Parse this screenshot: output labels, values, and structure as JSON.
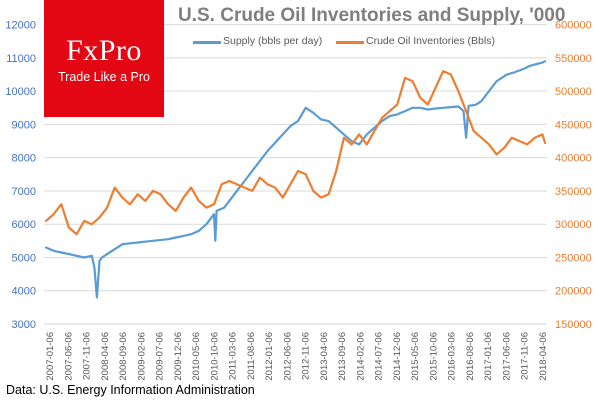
{
  "logo": {
    "name": "FxPro",
    "tagline": "Trade Like a Pro"
  },
  "source": "Data: U.S. Energy Information Administration",
  "colors": {
    "supply": "#5b9bd5",
    "inventories": "#ed7d31",
    "brand": "#e30613",
    "axis_left": "#4472c4",
    "axis_right": "#ed7d31"
  },
  "chart_data": {
    "type": "line",
    "title": "U.S. Crude Oil Inventories and Supply, '000",
    "legend": [
      "Supply (bbls per day)",
      "Crude Oil Inventories (Bbls)"
    ],
    "y_left_ticks": [
      "3000",
      "4000",
      "5000",
      "6000",
      "7000",
      "8000",
      "9000",
      "10000",
      "11000",
      "12000"
    ],
    "y_right_ticks": [
      "150000",
      "200000",
      "250000",
      "300000",
      "350000",
      "400000",
      "450000",
      "500000",
      "550000",
      "600000"
    ],
    "ylim_left": [
      3000,
      12500
    ],
    "ylim_right": [
      150000,
      625000
    ],
    "x_ticks": [
      "2007-01-06",
      "2007-06-06",
      "2007-11-06",
      "2008-04-06",
      "2008-09-06",
      "2009-02-06",
      "2009-07-06",
      "2009-12-06",
      "2010-05-06",
      "2010-10-06",
      "2011-03-06",
      "2011-08-06",
      "2012-01-06",
      "2012-06-06",
      "2012-11-06",
      "2013-04-06",
      "2013-09-06",
      "2014-02-06",
      "2014-07-06",
      "2014-12-06",
      "2015-05-06",
      "2015-10-06",
      "2016-03-06",
      "2016-08-06",
      "2017-01-06",
      "2017-06-06",
      "2017-11-06",
      "2018-04-06"
    ],
    "series": [
      {
        "name": "Supply (bbls per day)",
        "axis": "left",
        "x": [
          0,
          3,
          6,
          9,
          12,
          15,
          18,
          19,
          20,
          21,
          22,
          24,
          27,
          30,
          36,
          42,
          48,
          51,
          54,
          57,
          60,
          63,
          66,
          66.5,
          67,
          70,
          72,
          75,
          78,
          81,
          84,
          87,
          90,
          93,
          96,
          99,
          102,
          105,
          108,
          111,
          114,
          117,
          120,
          123,
          126,
          129,
          132,
          135,
          138,
          141,
          144,
          147,
          150,
          153,
          156,
          159,
          162,
          164,
          165,
          166,
          168,
          169,
          170,
          171,
          172,
          173,
          174,
          175,
          176,
          177,
          178,
          179,
          180,
          181,
          182,
          183,
          184,
          185,
          186,
          187,
          188,
          188.5,
          189,
          189.5,
          190,
          191,
          192,
          193,
          194,
          195,
          196
        ],
        "values": [
          5300,
          5200,
          5150,
          5100,
          5050,
          5000,
          5050,
          4700,
          3800,
          4900,
          5000,
          5100,
          5250,
          5400,
          5450,
          5500,
          5550,
          5600,
          5650,
          5700,
          5800,
          6000,
          6300,
          5500,
          6400,
          6500,
          6700,
          7000,
          7300,
          7600,
          7900,
          8200,
          8450,
          8700,
          8950,
          9100,
          9500,
          9350,
          9150,
          9100,
          8900,
          8700,
          8500,
          8400,
          8700,
          8900,
          9100,
          9250,
          9300,
          9400,
          9500,
          9500,
          9450,
          9480,
          9500,
          9520,
          9540,
          9400,
          8600,
          9560,
          9580,
          9600,
          9650,
          9700,
          9800,
          9900,
          10000,
          10100,
          10200,
          10300,
          10350,
          10400,
          10450,
          10500,
          10520,
          10550,
          10560,
          10600,
          10620,
          10650,
          10680,
          10700,
          10720,
          10740,
          10760,
          10780,
          10800,
          10820,
          10840,
          10860,
          10900
        ]
      },
      {
        "name": "Crude Oil Inventories (Bbls)",
        "axis": "right",
        "x": [
          0,
          3,
          6,
          9,
          12,
          15,
          18,
          21,
          24,
          27,
          30,
          33,
          36,
          39,
          42,
          45,
          48,
          51,
          54,
          57,
          60,
          63,
          66,
          69,
          72,
          75,
          78,
          81,
          84,
          87,
          90,
          93,
          96,
          99,
          102,
          105,
          108,
          111,
          114,
          117,
          120,
          123,
          126,
          129,
          132,
          135,
          138,
          141,
          144,
          147,
          150,
          153,
          156,
          159,
          162,
          165,
          168,
          171,
          174,
          177,
          180,
          183,
          186,
          189,
          192,
          195,
          196
        ],
        "values": [
          305000,
          315000,
          330000,
          295000,
          285000,
          305000,
          300000,
          310000,
          325000,
          355000,
          340000,
          330000,
          345000,
          335000,
          350000,
          345000,
          330000,
          320000,
          340000,
          355000,
          335000,
          325000,
          330000,
          360000,
          365000,
          360000,
          355000,
          350000,
          370000,
          360000,
          355000,
          340000,
          360000,
          380000,
          375000,
          350000,
          340000,
          345000,
          380000,
          430000,
          420000,
          435000,
          420000,
          440000,
          460000,
          470000,
          480000,
          520000,
          515000,
          490000,
          480000,
          505000,
          530000,
          525000,
          500000,
          470000,
          440000,
          430000,
          420000,
          405000,
          415000,
          430000,
          425000,
          420000,
          430000,
          435000,
          422000
        ]
      }
    ]
  }
}
